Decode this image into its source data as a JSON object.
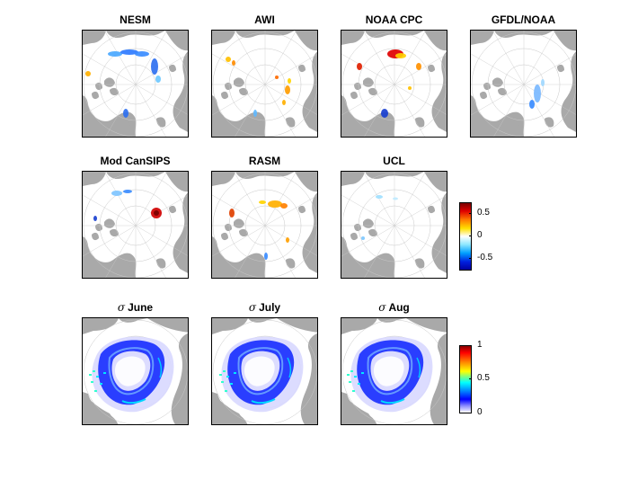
{
  "panels_row1": [
    {
      "id": "nesm",
      "title": "NESM"
    },
    {
      "id": "awi",
      "title": "AWI"
    },
    {
      "id": "noaa-cpc",
      "title": "NOAA CPC"
    },
    {
      "id": "gfdl-noaa",
      "title": "GFDL/NOAA"
    }
  ],
  "panels_row2": [
    {
      "id": "mod-cansips",
      "title": "Mod CanSIPS"
    },
    {
      "id": "rasm",
      "title": "RASM"
    },
    {
      "id": "ucl",
      "title": "UCL"
    }
  ],
  "panels_row3": [
    {
      "id": "sigma-june",
      "symbol": "σ",
      "title": "June"
    },
    {
      "id": "sigma-july",
      "symbol": "σ",
      "title": "July"
    },
    {
      "id": "sigma-aug",
      "symbol": "σ",
      "title": "Aug"
    }
  ],
  "colorbar_anomaly": {
    "ticks": [
      "0.5",
      "0",
      "-0.5"
    ],
    "tick_values": [
      0.5,
      0,
      -0.5
    ],
    "range": [
      -0.75,
      0.75
    ],
    "colormap": "blue-white-red"
  },
  "colorbar_sigma": {
    "ticks": [
      "1",
      "0.5",
      "0"
    ],
    "tick_values": [
      1,
      0.5,
      0
    ],
    "range": [
      0,
      1
    ],
    "colormap": "white-blue-cyan-yellow-red"
  },
  "colors": {
    "land": "#a9a9a9",
    "ocean": "#ffffff",
    "grid": "#c8c8c8"
  }
}
